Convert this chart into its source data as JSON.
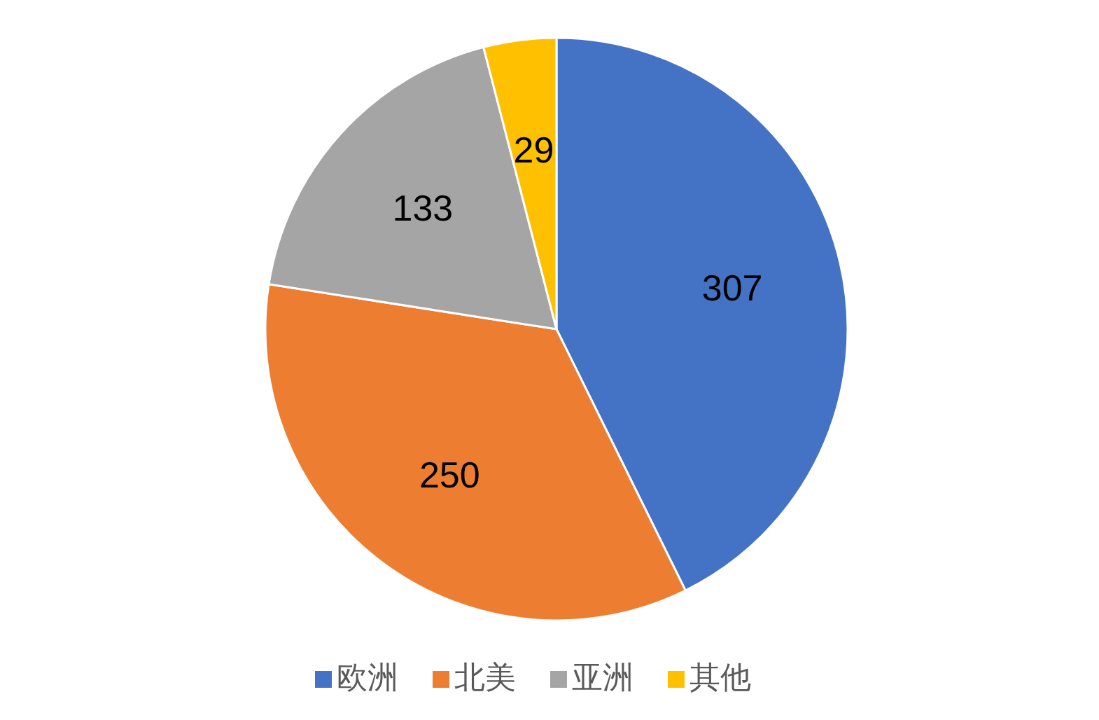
{
  "chart_data": {
    "type": "pie",
    "categories": [
      "欧洲",
      "北美",
      "亚洲",
      "其他"
    ],
    "values": [
      307,
      250,
      133,
      29
    ],
    "colors": [
      "#4472c4",
      "#ed7d31",
      "#a5a5a5",
      "#ffc000"
    ],
    "data_labels": true,
    "legend": "bottom"
  }
}
